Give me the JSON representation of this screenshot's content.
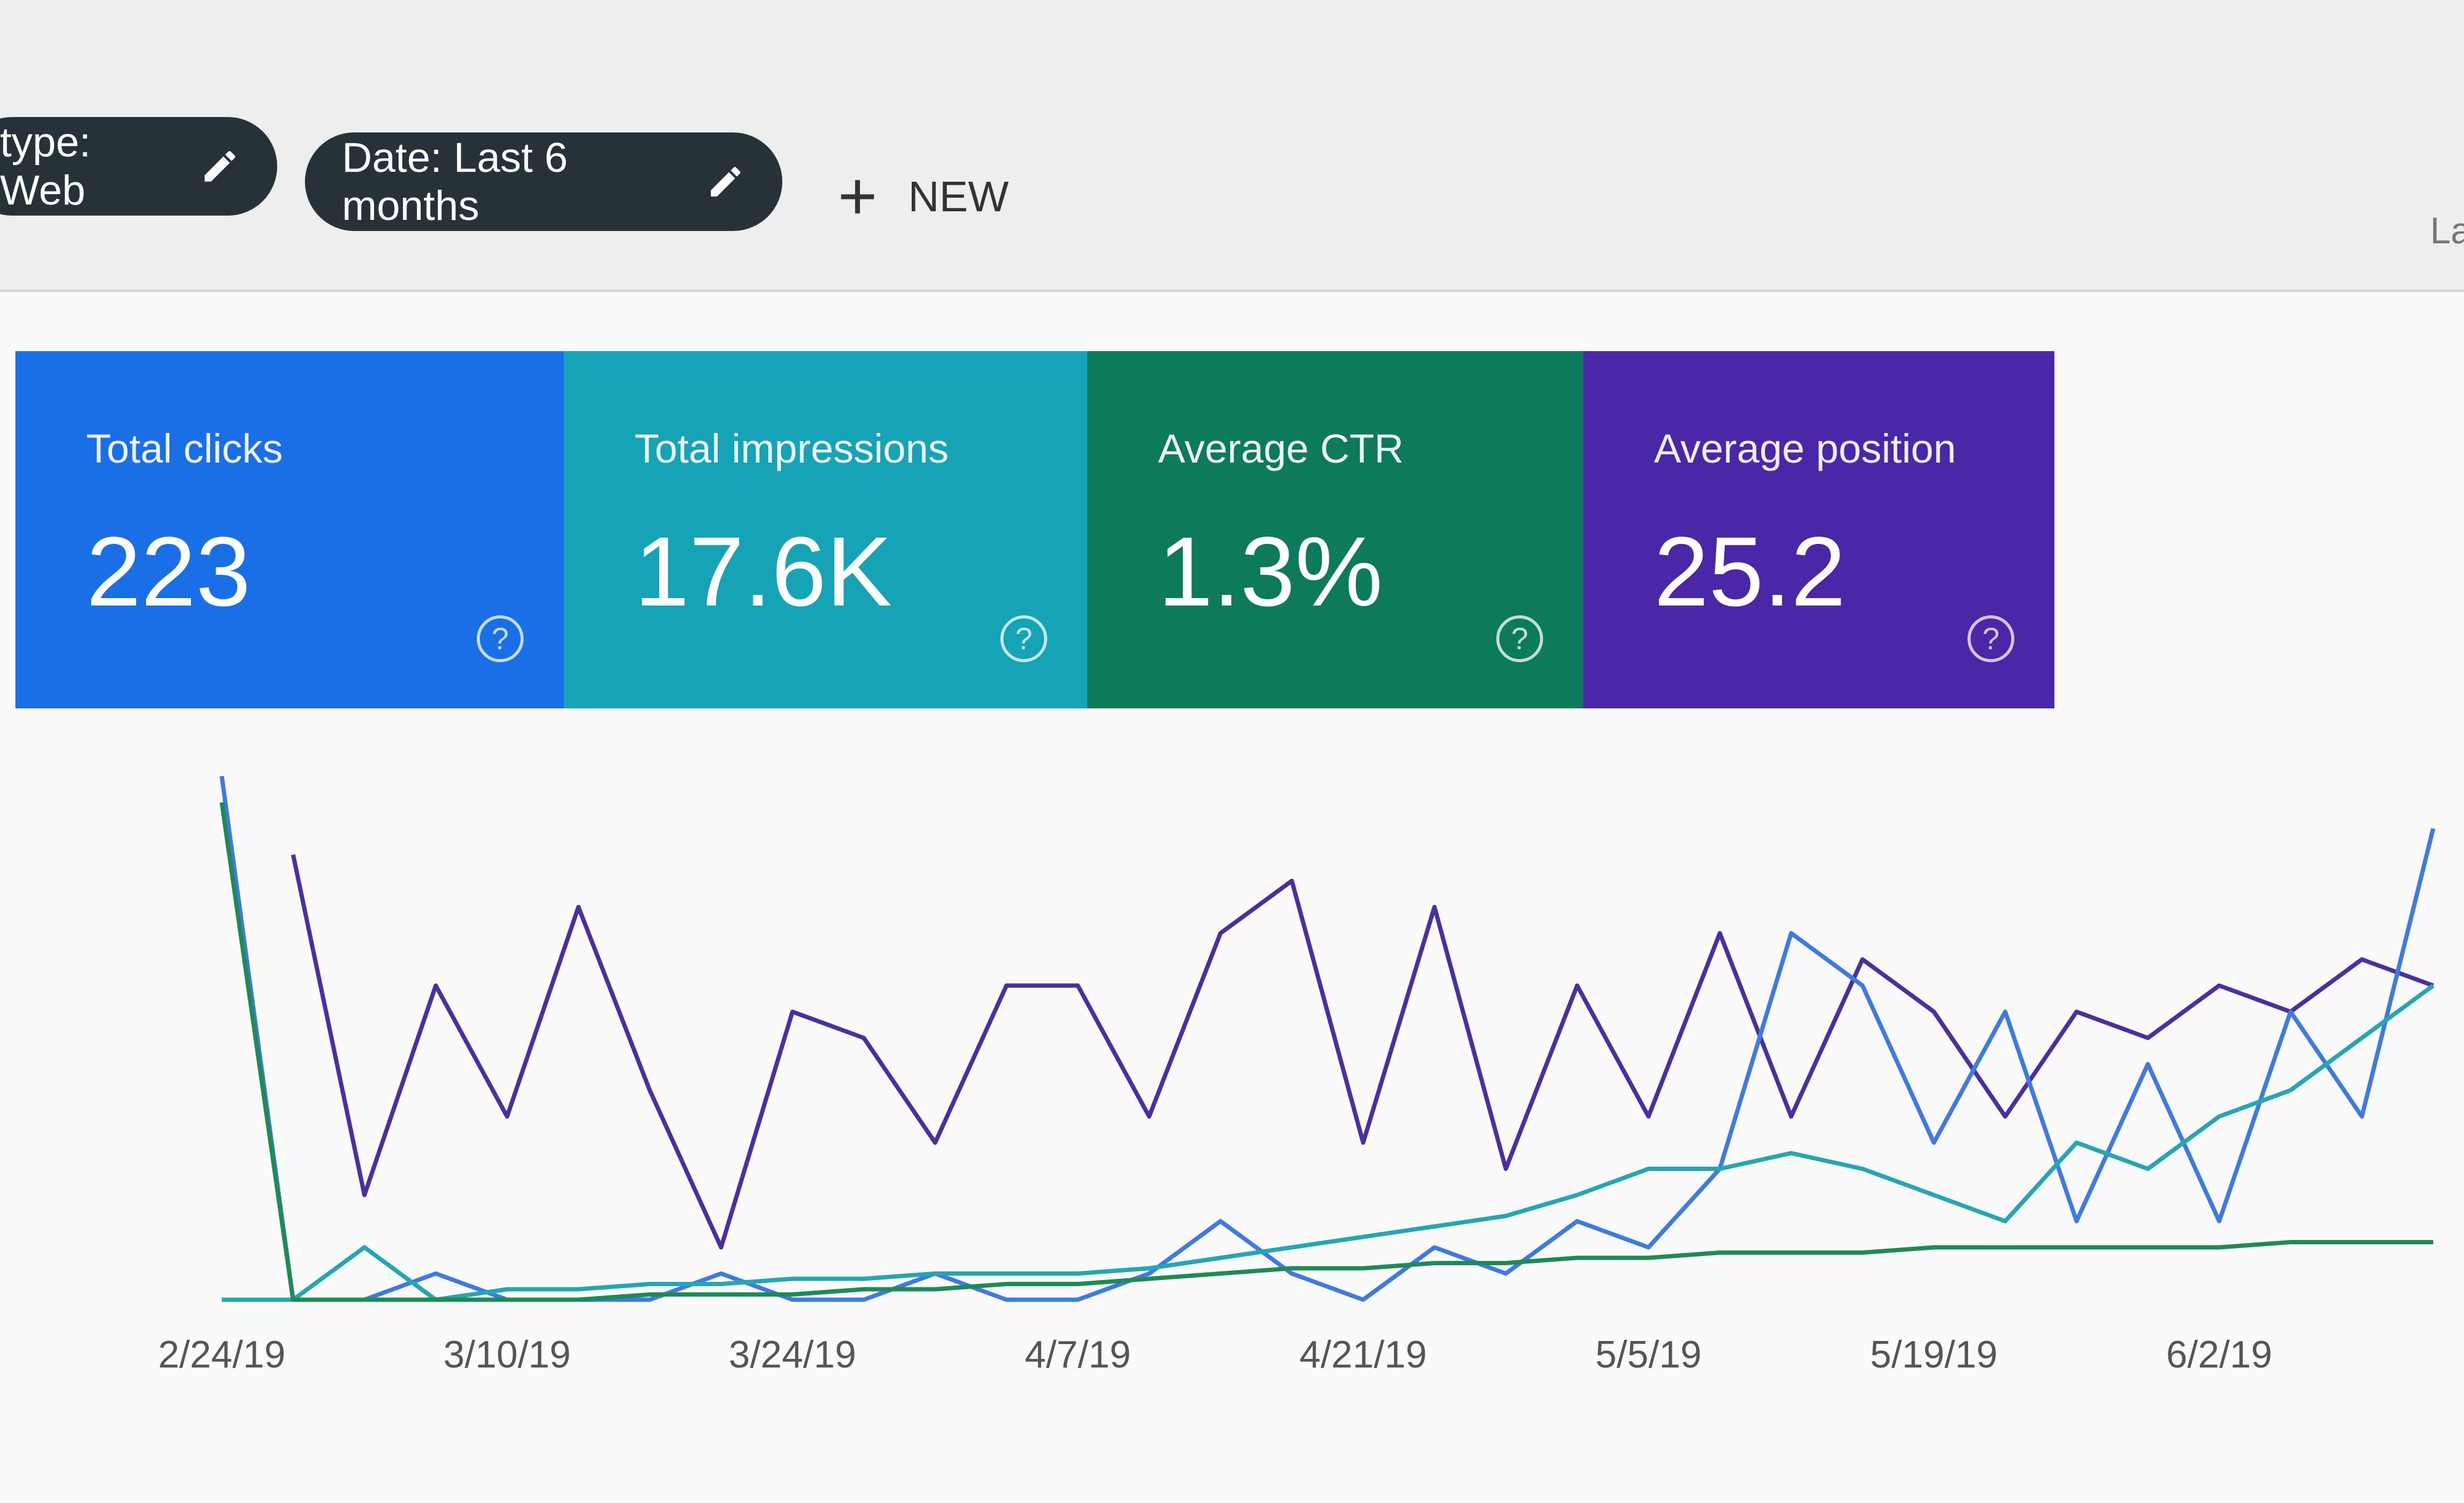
{
  "toolbar": {
    "chips": [
      "type: Web",
      "Date: Last 6 months"
    ],
    "new_button": "NEW",
    "right_text": "La"
  },
  "metrics": [
    {
      "label": "Total clicks",
      "value": "223",
      "color": "#1a6fe6"
    },
    {
      "label": "Total impressions",
      "value": "17.6K",
      "color": "#16a3b5"
    },
    {
      "label": "Average CTR",
      "value": "1.3%",
      "color": "#0e7a5c"
    },
    {
      "label": "Average position",
      "value": "25.2",
      "color": "#4a27a6"
    }
  ],
  "chart_data": {
    "type": "line",
    "categories": [
      "2/24/19",
      null,
      null,
      null,
      "3/10/19",
      null,
      null,
      null,
      "3/24/19",
      null,
      null,
      null,
      "4/7/19",
      null,
      null,
      null,
      "4/21/19",
      null,
      null,
      null,
      "5/5/19",
      null,
      null,
      null,
      "5/19/19",
      null,
      null,
      null,
      "6/2/19",
      null,
      null,
      null
    ],
    "ylim": [
      0,
      100
    ],
    "series": [
      {
        "color": "#4b2fa0",
        "values": [
          null,
          85,
          20,
          60,
          35,
          75,
          40,
          10,
          55,
          50,
          30,
          60,
          60,
          35,
          70,
          80,
          30,
          75,
          25,
          60,
          35,
          70,
          35,
          65,
          55,
          35,
          55,
          50,
          60,
          55,
          65,
          60
        ]
      },
      {
        "color": "#3f7ae0",
        "values": [
          100,
          0,
          0,
          5,
          0,
          0,
          0,
          5,
          0,
          0,
          5,
          0,
          0,
          5,
          15,
          5,
          0,
          10,
          5,
          15,
          10,
          25,
          70,
          60,
          30,
          55,
          15,
          45,
          15,
          55,
          35,
          90
        ]
      },
      {
        "color": "#26a6b3",
        "values": [
          0,
          0,
          10,
          0,
          2,
          2,
          3,
          3,
          4,
          4,
          5,
          5,
          5,
          6,
          8,
          10,
          12,
          14,
          16,
          20,
          25,
          25,
          28,
          25,
          20,
          15,
          30,
          25,
          35,
          40,
          50,
          60
        ]
      },
      {
        "color": "#1e8a55",
        "values": [
          95,
          0,
          0,
          0,
          0,
          0,
          1,
          1,
          1,
          2,
          2,
          3,
          3,
          4,
          5,
          6,
          6,
          7,
          7,
          8,
          8,
          9,
          9,
          9,
          10,
          10,
          10,
          10,
          10,
          11,
          11,
          11
        ]
      }
    ]
  }
}
